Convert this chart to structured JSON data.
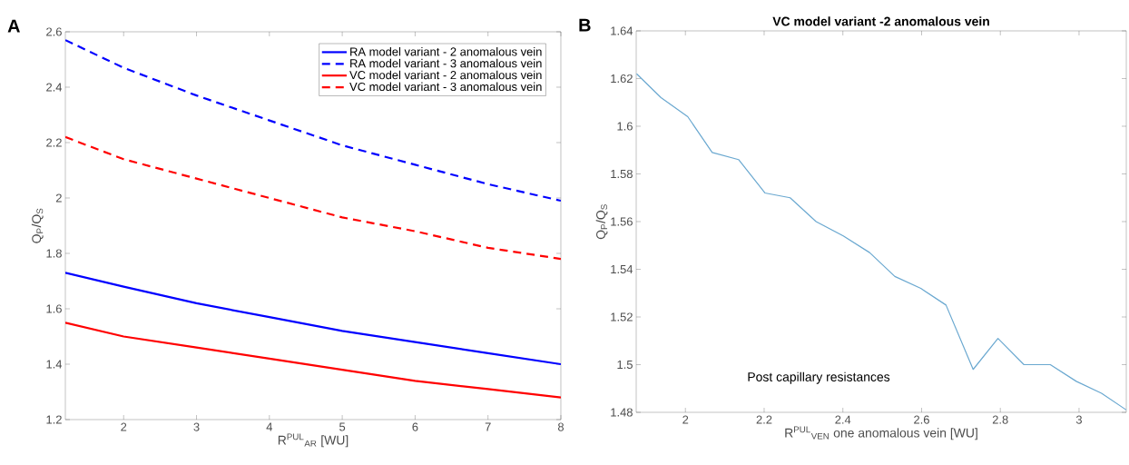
{
  "chart_data": [
    {
      "type": "line",
      "xlabel": "R$^{PUL}$$_{AR}$ [WU]",
      "ylabel": "Q$_{P}$/Q$_{S}$",
      "annotations": [
        "A"
      ],
      "x": [
        1.2,
        2,
        3,
        4,
        5,
        6,
        7,
        8
      ],
      "series": [
        {
          "name": "RA model variant - 2 anomalous vein",
          "color": "#0000ff",
          "line_style": "solid",
          "values": [
            1.73,
            1.68,
            1.62,
            1.57,
            1.52,
            1.48,
            1.44,
            1.4
          ]
        },
        {
          "name": "RA model variant - 3 anomalous vein",
          "color": "#0000ff",
          "line_style": "dashed",
          "values": [
            2.57,
            2.47,
            2.37,
            2.28,
            2.19,
            2.12,
            2.05,
            1.99
          ]
        },
        {
          "name": "VC model variant - 2 anomalous vein",
          "color": "#ff0000",
          "line_style": "solid",
          "values": [
            1.55,
            1.5,
            1.46,
            1.42,
            1.38,
            1.34,
            1.31,
            1.28
          ]
        },
        {
          "name": "VC model variant - 3 anomalous vein",
          "color": "#ff0000",
          "line_style": "dashed",
          "values": [
            2.22,
            2.14,
            2.07,
            2.0,
            1.93,
            1.88,
            1.82,
            1.78
          ]
        }
      ],
      "xlim": [
        1.2,
        8
      ],
      "ylim": [
        1.2,
        2.6
      ],
      "xticks": [
        2,
        3,
        4,
        5,
        6,
        7,
        8
      ],
      "yticks": [
        1.2,
        1.4,
        1.6,
        1.8,
        2,
        2.2,
        2.4,
        2.6
      ],
      "grid": false,
      "legend": "top right"
    },
    {
      "type": "line",
      "title": "VC model variant -2 anomalous vein",
      "xlabel": "R$^{PUL}$$_{VEN}$ one anomalous vein [WU]",
      "ylabel": "Q$_{P}$/Q$_{S}$",
      "annotations": [
        "B",
        "Post capillary resistances"
      ],
      "x": [
        1.876,
        1.938,
        2.006,
        2.068,
        2.135,
        2.202,
        2.266,
        2.332,
        2.401,
        2.468,
        2.532,
        2.598,
        2.662,
        2.731,
        2.794,
        2.86,
        2.927,
        2.993,
        3.057,
        3.12
      ],
      "series": [
        {
          "color": "#6aa8d0",
          "values": [
            1.622,
            1.612,
            1.604,
            1.589,
            1.586,
            1.572,
            1.57,
            1.56,
            1.554,
            1.547,
            1.537,
            1.532,
            1.525,
            1.498,
            1.511,
            1.5,
            1.5,
            1.493,
            1.488,
            1.481
          ]
        }
      ],
      "xlim": [
        1.875,
        3.12
      ],
      "ylim": [
        1.48,
        1.64
      ],
      "xticks": [
        2,
        2.2,
        2.4,
        2.6,
        2.8,
        3
      ],
      "yticks": [
        1.48,
        1.5,
        1.52,
        1.54,
        1.56,
        1.58,
        1.6,
        1.62,
        1.64
      ],
      "grid": false,
      "legend": false
    }
  ]
}
